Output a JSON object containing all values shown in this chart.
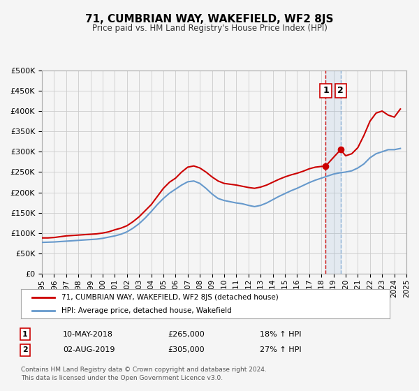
{
  "title": "71, CUMBRIAN WAY, WAKEFIELD, WF2 8JS",
  "subtitle": "Price paid vs. HM Land Registry's House Price Index (HPI)",
  "red_label": "71, CUMBRIAN WAY, WAKEFIELD, WF2 8JS (detached house)",
  "blue_label": "HPI: Average price, detached house, Wakefield",
  "annotation1_date": "10-MAY-2018",
  "annotation1_price": "£265,000",
  "annotation1_hpi": "18% ↑ HPI",
  "annotation1_year": 2018.36,
  "annotation1_value": 265000,
  "annotation2_date": "02-AUG-2019",
  "annotation2_price": "£305,000",
  "annotation2_hpi": "27% ↑ HPI",
  "annotation2_year": 2019.58,
  "annotation2_value": 305000,
  "vline1_year": 2018.36,
  "vline2_year": 2019.58,
  "red_color": "#cc0000",
  "blue_color": "#6699cc",
  "dot_color": "#cc0000",
  "background_color": "#f5f5f5",
  "plot_bg_color": "#f5f5f5",
  "grid_color": "#cccccc",
  "footnote": "Contains HM Land Registry data © Crown copyright and database right 2024.\nThis data is licensed under the Open Government Licence v3.0.",
  "ylim": [
    0,
    500000
  ],
  "yticks": [
    0,
    50000,
    100000,
    150000,
    200000,
    250000,
    300000,
    350000,
    400000,
    450000,
    500000
  ],
  "xlim_start": 1995,
  "xlim_end": 2025,
  "red_x": [
    1995,
    1995.5,
    1996,
    1996.5,
    1997,
    1997.5,
    1998,
    1998.5,
    1999,
    1999.5,
    2000,
    2000.5,
    2001,
    2001.5,
    2002,
    2002.5,
    2003,
    2003.5,
    2004,
    2004.5,
    2005,
    2005.5,
    2006,
    2006.5,
    2007,
    2007.5,
    2008,
    2008.5,
    2009,
    2009.5,
    2010,
    2010.5,
    2011,
    2011.5,
    2012,
    2012.5,
    2013,
    2013.5,
    2014,
    2014.5,
    2015,
    2015.5,
    2016,
    2016.5,
    2017,
    2017.5,
    2018.36,
    2019.58,
    2020,
    2020.5,
    2021,
    2021.5,
    2022,
    2022.5,
    2023,
    2023.5,
    2024,
    2024.5
  ],
  "red_y": [
    88000,
    88000,
    89000,
    91000,
    93000,
    94000,
    95000,
    96000,
    97000,
    98000,
    100000,
    103000,
    108000,
    112000,
    118000,
    128000,
    140000,
    155000,
    170000,
    190000,
    210000,
    225000,
    235000,
    250000,
    262000,
    265000,
    260000,
    250000,
    238000,
    228000,
    222000,
    220000,
    218000,
    215000,
    212000,
    210000,
    213000,
    218000,
    225000,
    232000,
    238000,
    243000,
    247000,
    252000,
    258000,
    262000,
    265000,
    305000,
    290000,
    295000,
    310000,
    340000,
    375000,
    395000,
    400000,
    390000,
    385000,
    405000
  ],
  "blue_x": [
    1995,
    1995.5,
    1996,
    1996.5,
    1997,
    1997.5,
    1998,
    1998.5,
    1999,
    1999.5,
    2000,
    2000.5,
    2001,
    2001.5,
    2002,
    2002.5,
    2003,
    2003.5,
    2004,
    2004.5,
    2005,
    2005.5,
    2006,
    2006.5,
    2007,
    2007.5,
    2008,
    2008.5,
    2009,
    2009.5,
    2010,
    2010.5,
    2011,
    2011.5,
    2012,
    2012.5,
    2013,
    2013.5,
    2014,
    2014.5,
    2015,
    2015.5,
    2016,
    2016.5,
    2017,
    2017.5,
    2018,
    2018.5,
    2019,
    2019.5,
    2020,
    2020.5,
    2021,
    2021.5,
    2022,
    2022.5,
    2023,
    2023.5,
    2024,
    2024.5
  ],
  "blue_y": [
    77000,
    77500,
    78000,
    79000,
    80000,
    81000,
    82000,
    83000,
    84000,
    85000,
    87000,
    90000,
    93000,
    97000,
    103000,
    112000,
    123000,
    137000,
    153000,
    170000,
    185000,
    198000,
    208000,
    218000,
    226000,
    228000,
    222000,
    210000,
    196000,
    185000,
    180000,
    177000,
    174000,
    172000,
    168000,
    165000,
    168000,
    174000,
    182000,
    190000,
    197000,
    204000,
    210000,
    217000,
    224000,
    230000,
    235000,
    240000,
    245000,
    248000,
    250000,
    253000,
    260000,
    270000,
    285000,
    295000,
    300000,
    305000,
    305000,
    308000
  ]
}
